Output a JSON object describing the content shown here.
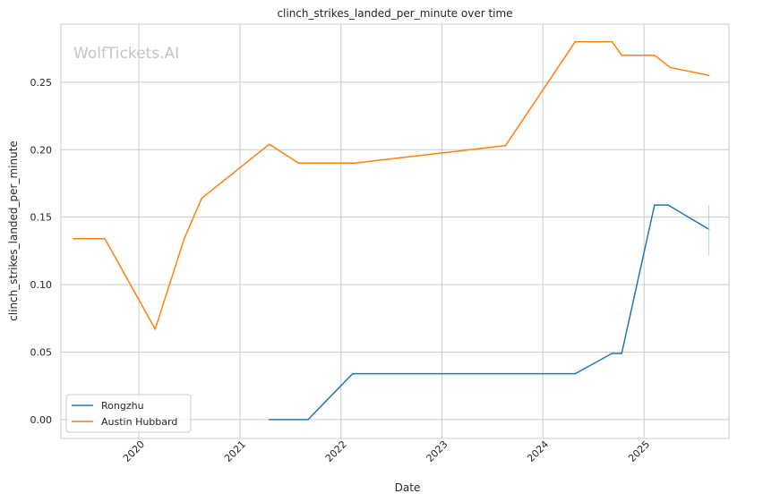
{
  "chart_data": {
    "type": "line",
    "title": "clinch_strikes_landed_per_minute over time",
    "xlabel": "Date",
    "ylabel": "clinch_strikes_landed_per_minute",
    "watermark": "WolfTickets.AI",
    "xlim": [
      "2019-03-25",
      "2025-11-04"
    ],
    "ylim": [
      -0.014,
      0.293
    ],
    "x_ticks": [
      "2020",
      "2021",
      "2022",
      "2023",
      "2024",
      "2025"
    ],
    "y_ticks": [
      "0.00",
      "0.05",
      "0.10",
      "0.15",
      "0.20",
      "0.25"
    ],
    "grid": true,
    "legend_position": "lower left",
    "series": [
      {
        "name": "Rongzhu",
        "color": "#1f77b4",
        "points": [
          [
            "2021-04-17",
            0.0
          ],
          [
            "2021-09-04",
            0.0
          ],
          [
            "2022-02-12",
            0.034
          ],
          [
            "2024-04-27",
            0.034
          ],
          [
            "2024-09-07",
            0.049
          ],
          [
            "2024-10-12",
            0.049
          ],
          [
            "2025-02-08",
            0.159
          ],
          [
            "2025-03-29",
            0.159
          ],
          [
            "2025-08-23",
            0.141
          ]
        ],
        "error_bar": {
          "x": "2025-08-23",
          "low": 0.122,
          "high": 0.159
        }
      },
      {
        "name": "Austin Hubbard",
        "color": "#ff7f0e",
        "points": [
          [
            "2019-05-11",
            0.134
          ],
          [
            "2019-08-31",
            0.134
          ],
          [
            "2020-02-29",
            0.067
          ],
          [
            "2020-06-13",
            0.134
          ],
          [
            "2020-08-15",
            0.164
          ],
          [
            "2021-04-17",
            0.204
          ],
          [
            "2021-07-31",
            0.19
          ],
          [
            "2022-02-19",
            0.19
          ],
          [
            "2023-08-19",
            0.203
          ],
          [
            "2024-04-27",
            0.28
          ],
          [
            "2024-09-07",
            0.28
          ],
          [
            "2024-10-12",
            0.27
          ],
          [
            "2025-02-08",
            0.27
          ],
          [
            "2025-04-05",
            0.261
          ],
          [
            "2025-08-23",
            0.255
          ]
        ]
      }
    ]
  }
}
